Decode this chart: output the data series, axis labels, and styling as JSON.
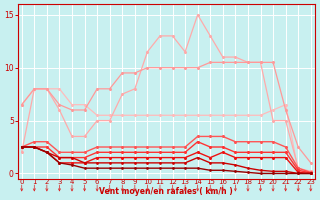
{
  "x": [
    0,
    1,
    2,
    3,
    4,
    5,
    6,
    7,
    8,
    9,
    10,
    11,
    12,
    13,
    14,
    15,
    16,
    17,
    18,
    19,
    20,
    21,
    22,
    23
  ],
  "series": [
    {
      "y": [
        6.5,
        8.0,
        8.0,
        8.0,
        6.5,
        6.5,
        5.5,
        5.5,
        5.5,
        5.5,
        5.5,
        5.5,
        5.5,
        5.5,
        5.5,
        5.5,
        5.5,
        5.5,
        5.5,
        5.5,
        6.0,
        6.5,
        0.2,
        0.2
      ],
      "color": "#ffbbbb",
      "lw": 0.9,
      "ms": 2.2
    },
    {
      "y": [
        2.0,
        8.0,
        8.0,
        6.0,
        3.5,
        3.5,
        5.0,
        5.0,
        7.5,
        8.0,
        11.5,
        13.0,
        13.0,
        11.5,
        15.0,
        13.0,
        11.0,
        11.0,
        10.5,
        10.5,
        5.0,
        5.0,
        0.5,
        0.2
      ],
      "color": "#ffaaaa",
      "lw": 0.9,
      "ms": 2.2
    },
    {
      "y": [
        6.5,
        8.0,
        8.0,
        6.5,
        6.0,
        6.0,
        8.0,
        8.0,
        9.5,
        9.5,
        10.0,
        10.0,
        10.0,
        10.0,
        10.0,
        10.5,
        10.5,
        10.5,
        10.5,
        10.5,
        10.5,
        6.0,
        2.5,
        1.0
      ],
      "color": "#ff9999",
      "lw": 0.9,
      "ms": 2.2
    },
    {
      "y": [
        2.5,
        3.0,
        3.0,
        2.0,
        2.0,
        2.0,
        2.5,
        2.5,
        2.5,
        2.5,
        2.5,
        2.5,
        2.5,
        2.5,
        3.5,
        3.5,
        3.5,
        3.0,
        3.0,
        3.0,
        3.0,
        2.5,
        0.5,
        0.1
      ],
      "color": "#ff5555",
      "lw": 1.0,
      "ms": 2.2
    },
    {
      "y": [
        2.5,
        2.5,
        2.5,
        1.5,
        1.5,
        1.5,
        2.0,
        2.0,
        2.0,
        2.0,
        2.0,
        2.0,
        2.0,
        2.0,
        3.0,
        2.5,
        2.5,
        2.0,
        2.0,
        2.0,
        2.0,
        2.0,
        0.3,
        0.05
      ],
      "color": "#ff3333",
      "lw": 1.0,
      "ms": 2.2
    },
    {
      "y": [
        2.5,
        2.5,
        2.0,
        1.0,
        1.0,
        1.0,
        1.5,
        1.5,
        1.5,
        1.5,
        1.5,
        1.5,
        1.5,
        1.5,
        2.0,
        1.5,
        2.0,
        1.5,
        1.5,
        1.5,
        1.5,
        1.5,
        0.1,
        0.0
      ],
      "color": "#ee1111",
      "lw": 1.0,
      "ms": 2.2
    },
    {
      "y": [
        2.5,
        2.5,
        2.0,
        1.5,
        1.5,
        1.0,
        1.0,
        1.0,
        1.0,
        1.0,
        1.0,
        1.0,
        1.0,
        1.0,
        1.5,
        1.0,
        1.0,
        0.8,
        0.5,
        0.3,
        0.2,
        0.2,
        0.0,
        0.0
      ],
      "color": "#cc0000",
      "lw": 1.0,
      "ms": 2.0
    },
    {
      "y": [
        2.5,
        2.5,
        2.0,
        1.0,
        0.8,
        0.5,
        0.5,
        0.5,
        0.5,
        0.5,
        0.5,
        0.5,
        0.5,
        0.5,
        0.5,
        0.3,
        0.3,
        0.2,
        0.1,
        0.0,
        0.0,
        0.0,
        0.0,
        0.0
      ],
      "color": "#990000",
      "lw": 1.0,
      "ms": 2.0
    }
  ],
  "xlabel": "Vent moyen/en rafales ( km/h )",
  "yticks": [
    0,
    5,
    10,
    15
  ],
  "xticks": [
    0,
    1,
    2,
    3,
    4,
    5,
    6,
    7,
    8,
    9,
    10,
    11,
    12,
    13,
    14,
    15,
    16,
    17,
    18,
    19,
    20,
    21,
    22,
    23
  ],
  "ylim": [
    -0.5,
    16
  ],
  "xlim": [
    -0.3,
    23.3
  ],
  "bg_color": "#c8f0f0",
  "grid_color": "#ffffff",
  "axis_color": "#cc0000",
  "tick_color": "#cc0000",
  "label_color": "#cc0000",
  "arrow_color": "#dd2222"
}
